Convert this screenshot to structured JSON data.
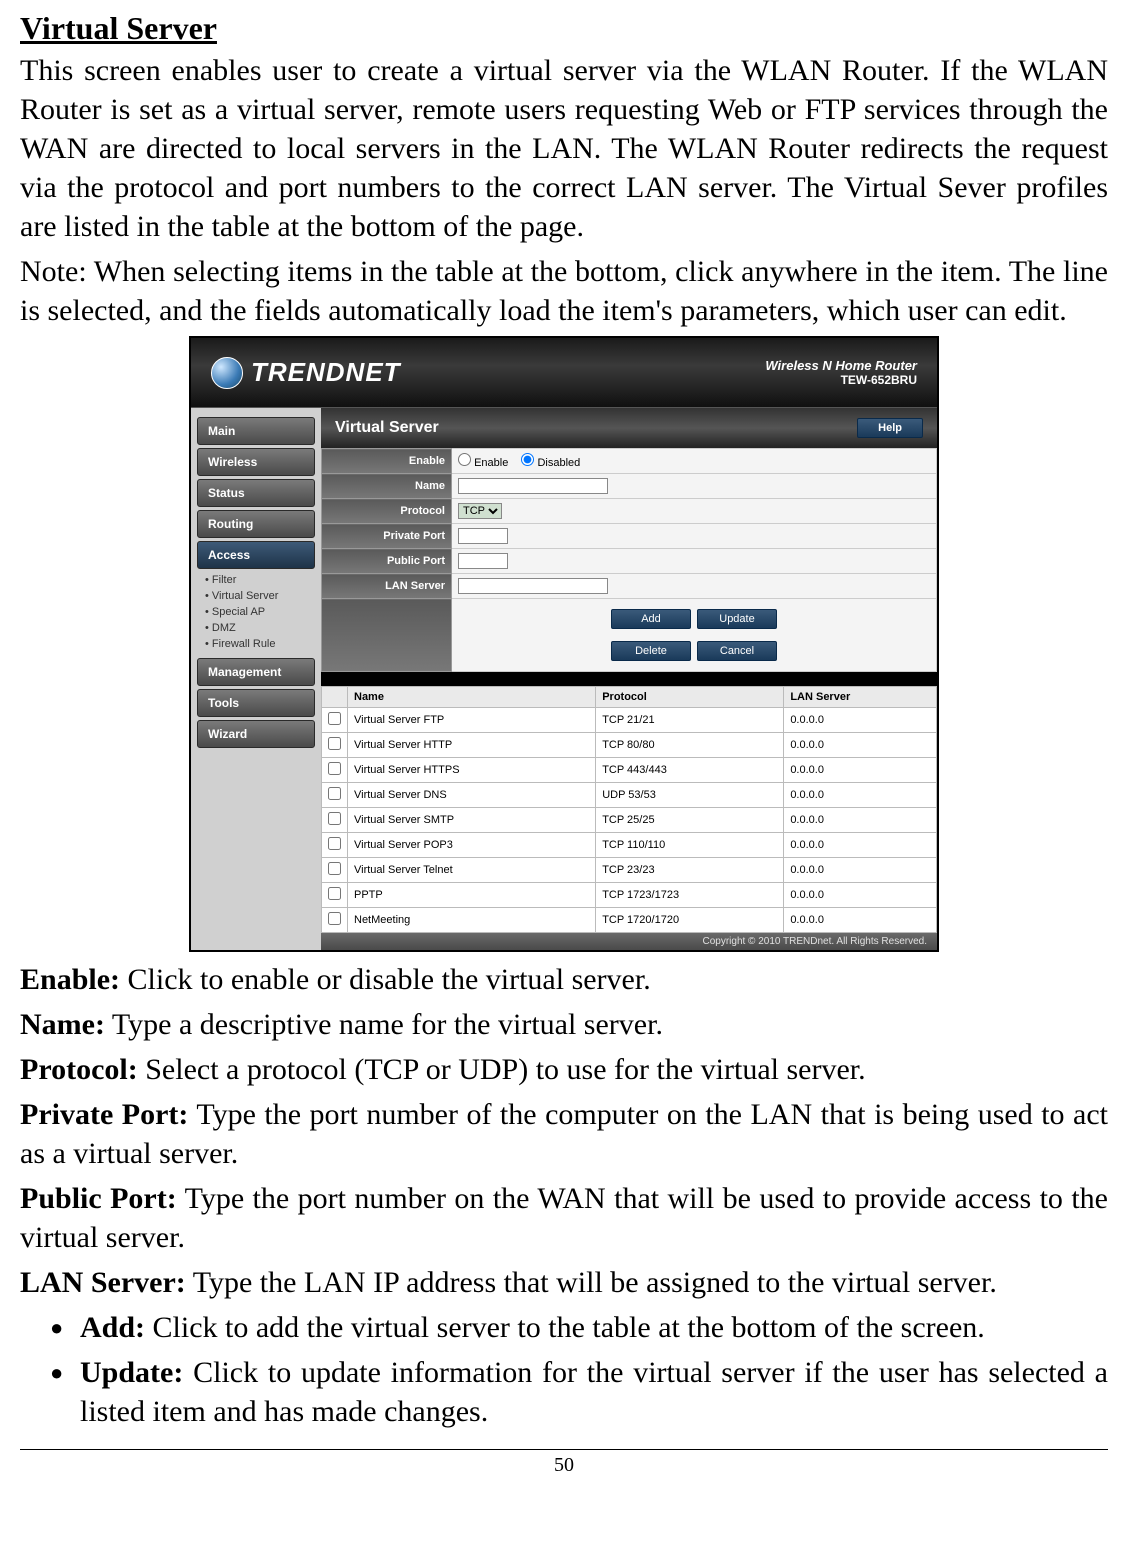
{
  "title": "Virtual Server",
  "intro": "This screen enables user to create a virtual server via the WLAN Router. If the WLAN Router is set as a virtual server, remote users requesting Web or FTP services through the WAN are directed to local servers in the LAN. The WLAN Router redirects the request via the protocol and port numbers to the correct LAN server. The Virtual Sever profiles are listed in the table at the bottom of the page.",
  "note": "Note: When selecting items in the table at the bottom, click anywhere in the item. The line is selected, and the fields automatically load the item's parameters, which user can edit.",
  "fields": {
    "enable": {
      "label": "Enable:",
      "text": " Click to enable or disable the virtual server."
    },
    "name": {
      "label": "Name:",
      "text": " Type a descriptive name for the virtual server."
    },
    "protocol": {
      "label": "Protocol:",
      "text": " Select a protocol (TCP or UDP) to use for the virtual server."
    },
    "private_port": {
      "label": "Private Port:",
      "text": " Type the port number of the computer on the LAN that is being used to act as a virtual server."
    },
    "public_port": {
      "label": "Public Port:",
      "text": " Type the port number on the WAN that will be used to provide access to the virtual server."
    },
    "lan_server": {
      "label": "LAN Server:",
      "text": " Type the LAN IP address that will be assigned to the virtual server."
    }
  },
  "bullets": {
    "add": {
      "label": "Add:",
      "text": " Click to add the virtual server to the table at the bottom of the screen."
    },
    "update": {
      "label": "Update:",
      "text": " Click to update information for the virtual server if the user has selected a listed item and has made changes."
    }
  },
  "page_num": "50",
  "router": {
    "logo": "TRENDNET",
    "model_line1": "Wireless N Home Router",
    "model_line2": "TEW-652BRU",
    "nav": [
      "Main",
      "Wireless",
      "Status",
      "Routing",
      "Access"
    ],
    "sub_nav": [
      "Filter",
      "Virtual Server",
      "Special AP",
      "DMZ",
      "Firewall Rule"
    ],
    "nav2": [
      "Management",
      "Tools",
      "Wizard"
    ],
    "panel_title": "Virtual Server",
    "help": "Help",
    "form": {
      "enable": "Enable",
      "enable_opt1": "Enable",
      "enable_opt2": "Disabled",
      "name": "Name",
      "protocol": "Protocol",
      "protocol_sel": "TCP",
      "private_port": "Private Port",
      "public_port": "Public Port",
      "lan_server": "LAN Server"
    },
    "buttons": {
      "add": "Add",
      "update": "Update",
      "delete": "Delete",
      "cancel": "Cancel"
    },
    "table": {
      "headers": [
        "Name",
        "Protocol",
        "LAN Server"
      ],
      "rows": [
        [
          "Virtual Server FTP",
          "TCP 21/21",
          "0.0.0.0"
        ],
        [
          "Virtual Server HTTP",
          "TCP 80/80",
          "0.0.0.0"
        ],
        [
          "Virtual Server HTTPS",
          "TCP 443/443",
          "0.0.0.0"
        ],
        [
          "Virtual Server DNS",
          "UDP 53/53",
          "0.0.0.0"
        ],
        [
          "Virtual Server SMTP",
          "TCP 25/25",
          "0.0.0.0"
        ],
        [
          "Virtual Server POP3",
          "TCP 110/110",
          "0.0.0.0"
        ],
        [
          "Virtual Server Telnet",
          "TCP 23/23",
          "0.0.0.0"
        ],
        [
          "PPTP",
          "TCP 1723/1723",
          "0.0.0.0"
        ],
        [
          "NetMeeting",
          "TCP 1720/1720",
          "0.0.0.0"
        ]
      ]
    },
    "footer": "Copyright © 2010 TRENDnet. All Rights Reserved."
  }
}
